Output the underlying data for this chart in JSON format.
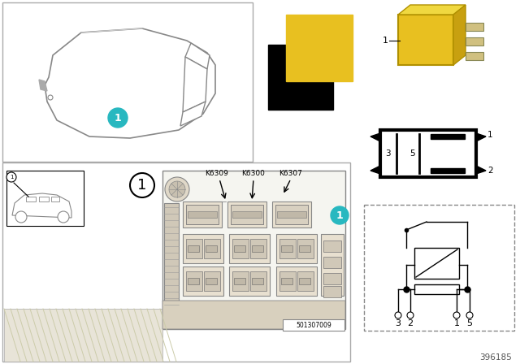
{
  "white": "#ffffff",
  "black": "#000000",
  "gray_border": "#aaaaaa",
  "gray_light": "#d8d8d8",
  "gray_med": "#b0b0b0",
  "yellow": "#e8c020",
  "teal": "#28b8c0",
  "teal_text": "#ffffff",
  "dash_color": "#888888",
  "k_labels": [
    "K6309",
    "K6300",
    "K6307"
  ],
  "part_number": "501307009",
  "ref_number": "396185",
  "pin_labels_box": [
    "1",
    "2",
    "3",
    "5"
  ],
  "pin_labels_circuit": [
    "3",
    "2",
    "1",
    "5"
  ]
}
